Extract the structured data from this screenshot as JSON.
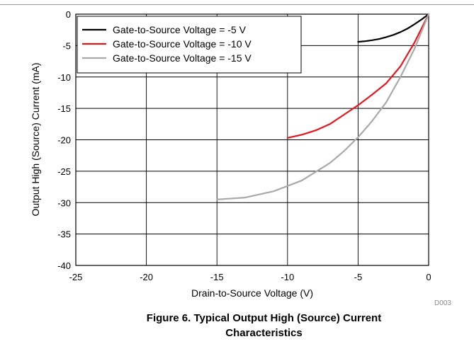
{
  "chart_data": {
    "type": "line",
    "xlabel": "Drain-to-Source Voltage (V)",
    "ylabel": "Output High (Source) Current (mA)",
    "xlim": [
      -25,
      0
    ],
    "ylim": [
      -40,
      0
    ],
    "x_ticks": [
      "-25",
      "-20",
      "-15",
      "-10",
      "-5",
      "0"
    ],
    "y_ticks": [
      "0",
      "-5",
      "-10",
      "-15",
      "-20",
      "-25",
      "-30",
      "-35",
      "-40"
    ],
    "grid": true,
    "legend_position": "top-left",
    "series": [
      {
        "name": "Gate-to-Source Voltage = -5 V",
        "color": "#000000",
        "x": [
          -5,
          -4.5,
          -4,
          -3.5,
          -3,
          -2.5,
          -2,
          -1.5,
          -1,
          -0.5,
          0
        ],
        "y": [
          -4.4,
          -4.3,
          -4.15,
          -3.95,
          -3.65,
          -3.3,
          -2.85,
          -2.3,
          -1.6,
          -0.85,
          0
        ]
      },
      {
        "name": "Gate-to-Source Voltage = -10 V",
        "color": "#e8161b",
        "x": [
          -10,
          -9,
          -8,
          -7,
          -6,
          -5,
          -4,
          -3,
          -2,
          -1,
          0
        ],
        "y": [
          -19.7,
          -19.2,
          -18.5,
          -17.5,
          -16,
          -14.5,
          -12.8,
          -11,
          -8.3,
          -4.5,
          0
        ]
      },
      {
        "name": "Gate-to-Source Voltage = -15 V",
        "color": "#a9a9a9",
        "x": [
          -15,
          -13,
          -11,
          -9,
          -7,
          -6,
          -5,
          -4,
          -3,
          -2,
          -1,
          0
        ],
        "y": [
          -29.5,
          -29.2,
          -28.2,
          -26.5,
          -23.7,
          -21.8,
          -19.6,
          -17,
          -14,
          -10,
          -5.5,
          0
        ]
      }
    ],
    "code": "D003"
  },
  "caption": {
    "line1": "Figure 6. Typical Output High (Source) Current",
    "line2": "Characteristics"
  }
}
